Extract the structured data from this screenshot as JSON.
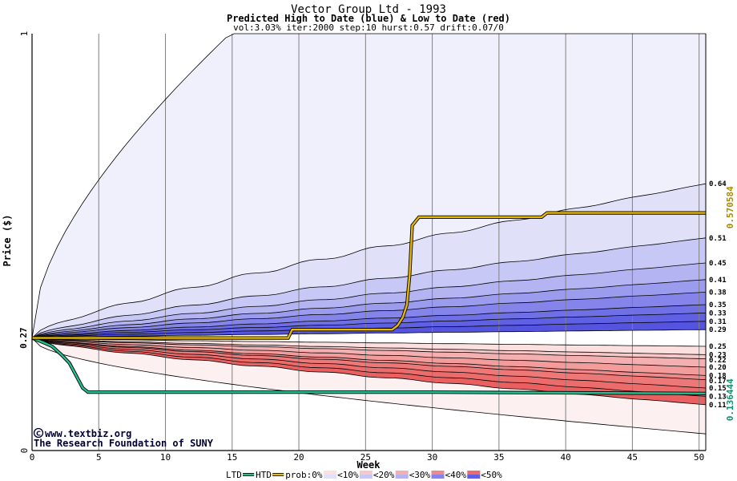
{
  "chart_data": {
    "type": "area",
    "title": "Vector Group Ltd - 1993",
    "subtitle": "Predicted High to Date (blue) &  Low to Date (red)",
    "params": "vol:3.03% iter:2000 step:10 hurst:0.57 drift:0.07/0",
    "xlabel": "Week",
    "ylabel": "Price ($)",
    "xlim": [
      0,
      50.5
    ],
    "ylim": [
      0,
      1
    ],
    "x_ticks": [
      0,
      5,
      10,
      15,
      20,
      25,
      30,
      35,
      40,
      45,
      50
    ],
    "y_ticks": [
      0,
      1
    ],
    "start_price": 0.27,
    "start_price_label": "0.27",
    "high_to_date_final": "0.570584",
    "low_to_date_final": "0.136444",
    "upper_levels": [
      0.64,
      0.51,
      0.45,
      0.41,
      0.38,
      0.35,
      0.33,
      0.31,
      0.29
    ],
    "lower_levels": [
      0.25,
      0.23,
      0.22,
      0.2,
      0.18,
      0.17,
      0.15,
      0.13,
      0.11
    ],
    "upper_level_labels": [
      "0.64",
      "0.51",
      "0.45",
      "0.41",
      "0.38",
      "0.35",
      "0.33",
      "0.31",
      "0.29"
    ],
    "lower_level_labels": [
      "0.25",
      "0.23",
      "0.22",
      "0.20",
      "0.18",
      "0.17",
      "0.15",
      "0.13",
      "0.11"
    ],
    "upper_extreme": 1.0,
    "lower_extreme": 0.04,
    "band_colors_upper": [
      "#f0f0fc",
      "#e0e0f8",
      "#c8c8f6",
      "#b4b4f2",
      "#9c9cee",
      "#8484ea",
      "#7070e6",
      "#6060e4",
      "#5454e0"
    ],
    "band_colors_lower": [
      "#fcf0f0",
      "#fce0e0",
      "#f8c8c8",
      "#f4b0b0",
      "#f29c9c",
      "#f08a8a",
      "#ee7878",
      "#ec6c6c",
      "#ea6060"
    ],
    "htd_series": {
      "name": "HTD",
      "color": "#e8b800",
      "points": [
        [
          0,
          0.27
        ],
        [
          19.2,
          0.27
        ],
        [
          19.5,
          0.29
        ],
        [
          27,
          0.29
        ],
        [
          27.4,
          0.3
        ],
        [
          27.8,
          0.32
        ],
        [
          28.1,
          0.35
        ],
        [
          28.3,
          0.42
        ],
        [
          28.5,
          0.54
        ],
        [
          29,
          0.56
        ],
        [
          38.2,
          0.56
        ],
        [
          38.6,
          0.57
        ],
        [
          50.5,
          0.57
        ]
      ]
    },
    "ltd_series": {
      "name": "LTD",
      "color": "#20c090",
      "points": [
        [
          0,
          0.27
        ],
        [
          0.8,
          0.26
        ],
        [
          1.5,
          0.25
        ],
        [
          2.2,
          0.23
        ],
        [
          2.8,
          0.21
        ],
        [
          3.3,
          0.18
        ],
        [
          3.8,
          0.15
        ],
        [
          4.2,
          0.14
        ],
        [
          30,
          0.14
        ],
        [
          50.5,
          0.137
        ]
      ]
    },
    "legend": {
      "ltd": "LTD",
      "htd": "HTD",
      "prob_prefix": "prob:0%",
      "items": [
        "<10%",
        "<20%",
        "<30%",
        "<40%",
        "<50%"
      ],
      "placement": "bottom"
    },
    "grid": true
  },
  "credit": {
    "site": "www.textbiz.org",
    "org": "The Research Foundation of SUNY"
  }
}
